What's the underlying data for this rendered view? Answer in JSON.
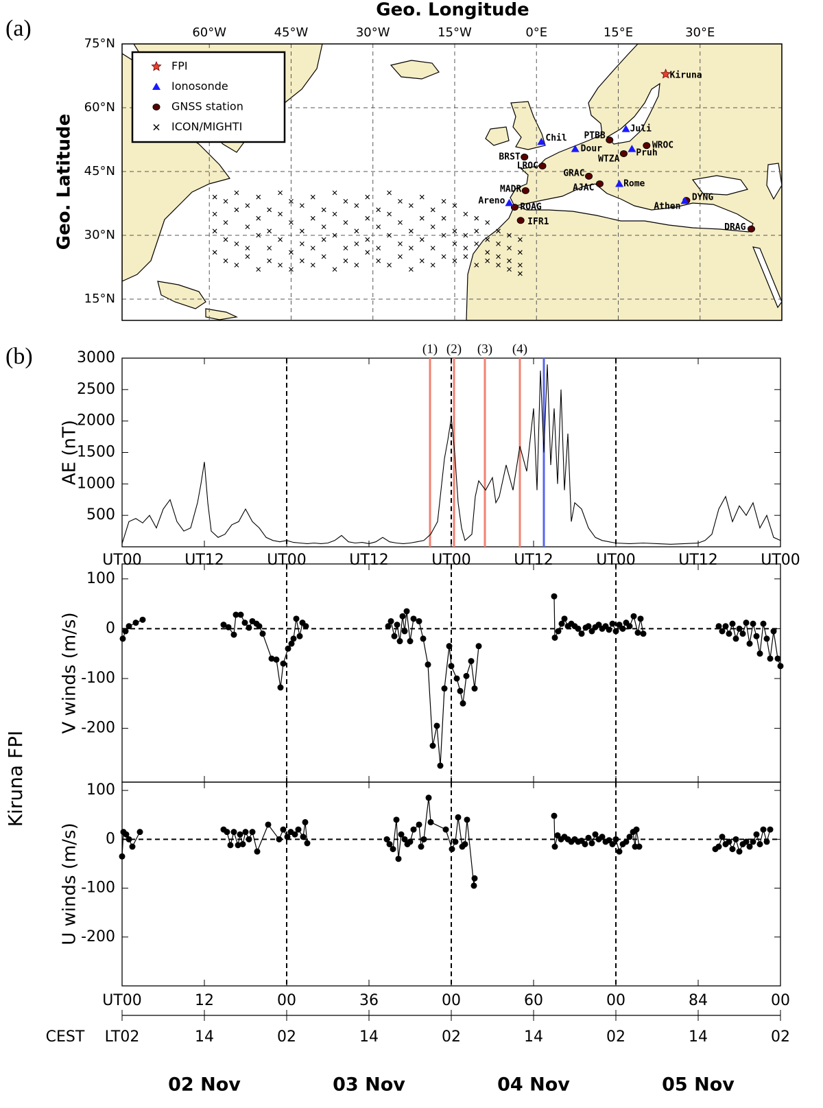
{
  "panel_labels": {
    "a": "(a)",
    "b": "(b)"
  },
  "map": {
    "xlabel": "Geo. Longitude",
    "ylabel": "Geo. Latitude",
    "xlim": [
      -76,
      45
    ],
    "ylim": [
      10,
      75
    ],
    "xticks": [
      {
        "value": -60,
        "label": "60°W"
      },
      {
        "value": -45,
        "label": "45°W"
      },
      {
        "value": -30,
        "label": "30°W"
      },
      {
        "value": -15,
        "label": "15°W"
      },
      {
        "value": 0,
        "label": "0°E"
      },
      {
        "value": 15,
        "label": "15°E"
      },
      {
        "value": 30,
        "label": "30°E"
      }
    ],
    "yticks": [
      {
        "value": 75,
        "label": "75°N"
      },
      {
        "value": 60,
        "label": "60°N"
      },
      {
        "value": 45,
        "label": "45°N"
      },
      {
        "value": 30,
        "label": "30°N"
      },
      {
        "value": 15,
        "label": "15°N"
      }
    ],
    "grid": true,
    "legend": [
      "FPI",
      "Ionosonde",
      "GNSS station",
      "ICON/MIGHTI"
    ],
    "colors": {
      "fpi": "#e8412c",
      "ionosonde": "#1a1aff",
      "gnss": "#000000",
      "mighti": "#000000",
      "land": "#f5edc4"
    },
    "fpi": [
      {
        "name": "Kiruna",
        "lon": 23.7,
        "lat": 67.9
      }
    ],
    "ionosonde": [
      {
        "name": "Chil",
        "lon": 0.9,
        "lat": 52.0
      },
      {
        "name": "Dour",
        "lon": 7.1,
        "lat": 50.3
      },
      {
        "name": "Juli",
        "lon": 16.4,
        "lat": 55.0
      },
      {
        "name": "Pruh",
        "lon": 17.5,
        "lat": 50.3
      },
      {
        "name": "Rome",
        "lon": 15.2,
        "lat": 42.1
      },
      {
        "name": "Areno",
        "lon": -5.0,
        "lat": 37.6
      },
      {
        "name": "Athen",
        "lon": 27.2,
        "lat": 38.1
      }
    ],
    "gnss": [
      {
        "name": "PTBB",
        "lon": 13.4,
        "lat": 52.4
      },
      {
        "name": "WROC",
        "lon": 20.2,
        "lat": 51.1
      },
      {
        "name": "WTZA",
        "lon": 16.0,
        "lat": 49.2
      },
      {
        "name": "BRST",
        "lon": -2.2,
        "lat": 48.4
      },
      {
        "name": "LROC",
        "lon": 1.1,
        "lat": 46.3
      },
      {
        "name": "GRAC",
        "lon": 9.6,
        "lat": 43.9
      },
      {
        "name": "AJAC",
        "lon": 11.6,
        "lat": 42.1
      },
      {
        "name": "MADR",
        "lon": -2.0,
        "lat": 40.5
      },
      {
        "name": "ROAG",
        "lon": -4.0,
        "lat": 36.6
      },
      {
        "name": "IFR1",
        "lon": -2.9,
        "lat": 33.5
      },
      {
        "name": "DYNG",
        "lon": 27.5,
        "lat": 38.2
      },
      {
        "name": "DRAG",
        "lon": 39.4,
        "lat": 31.5
      }
    ],
    "mighti": {
      "lon": [
        -59,
        -59,
        -59,
        -59,
        -57,
        -57,
        -57,
        -57,
        -55,
        -55,
        -55,
        -55,
        -53,
        -53,
        -53,
        -53,
        -51,
        -51,
        -51,
        -51,
        -49,
        -49,
        -49,
        -49,
        -47,
        -47,
        -47,
        -47,
        -45,
        -45,
        -45,
        -45,
        -43,
        -43,
        -43,
        -43,
        -41,
        -41,
        -41,
        -41,
        -39,
        -39,
        -39,
        -39,
        -37,
        -37,
        -37,
        -37,
        -35,
        -35,
        -35,
        -35,
        -33,
        -33,
        -33,
        -33,
        -31,
        -31,
        -31,
        -31,
        -29,
        -29,
        -29,
        -29,
        -27,
        -27,
        -27,
        -27,
        -25,
        -25,
        -25,
        -25,
        -23,
        -23,
        -23,
        -23,
        -21,
        -21,
        -21,
        -21,
        -19,
        -19,
        -19,
        -19,
        -17,
        -17,
        -17,
        -17,
        -15,
        -15,
        -15,
        -15,
        -13,
        -13,
        -13,
        -13,
        -11,
        -11,
        -11,
        -11,
        -9,
        -9,
        -9,
        -9,
        -7,
        -7,
        -7,
        -7,
        -5,
        -5,
        -5,
        -5,
        -3,
        -3,
        -3,
        -3
      ],
      "lat": [
        39,
        35,
        31,
        26,
        38,
        33,
        29,
        24,
        40,
        36,
        28,
        23,
        37,
        32,
        27,
        25,
        39,
        34,
        30,
        22,
        36,
        31,
        27,
        24,
        40,
        35,
        29,
        23,
        38,
        33,
        26,
        22,
        37,
        31,
        28,
        24,
        39,
        34,
        27,
        23,
        36,
        32,
        29,
        25,
        40,
        35,
        30,
        22,
        38,
        33,
        27,
        24,
        37,
        31,
        28,
        23,
        39,
        34,
        29,
        26,
        36,
        32,
        27,
        24,
        40,
        35,
        30,
        23,
        38,
        33,
        28,
        25,
        37,
        31,
        27,
        22,
        39,
        34,
        29,
        24,
        36,
        32,
        27,
        23,
        38,
        34,
        30,
        25,
        37,
        31,
        28,
        24,
        35,
        30,
        27,
        25,
        34,
        31,
        28,
        23,
        33,
        29,
        26,
        24,
        31,
        28,
        25,
        23,
        30,
        27,
        24,
        22,
        29,
        26,
        23,
        21
      ]
    }
  },
  "group_label": "Kiruna FPI",
  "chart_data": [
    {
      "type": "line",
      "ylabel": "AE (nT)",
      "color": "#000000",
      "markers": false,
      "x": [
        0,
        1,
        2,
        3,
        4,
        5,
        6,
        7,
        8,
        9,
        10,
        11,
        11.5,
        12,
        12.5,
        13,
        14,
        15,
        16,
        17,
        18,
        19,
        20,
        21,
        22,
        23,
        24,
        25,
        26,
        27,
        28,
        29,
        30,
        31,
        32,
        33,
        34,
        35,
        36,
        37,
        38,
        39,
        40,
        41,
        42,
        43,
        44,
        45,
        46,
        47,
        47.5,
        48,
        48.5,
        49,
        49.5,
        50,
        51,
        51.5,
        52,
        53,
        54,
        54.5,
        55,
        56,
        57,
        58,
        59,
        60,
        60.5,
        61,
        61.5,
        62,
        62.5,
        63,
        63.5,
        64,
        64.5,
        65,
        65.5,
        66,
        67,
        68,
        69,
        70,
        71,
        72,
        74,
        76,
        78,
        80,
        82,
        84,
        85,
        86,
        87,
        88,
        89,
        90,
        91,
        92,
        93,
        94,
        95,
        96
      ],
      "values": [
        50,
        400,
        450,
        380,
        500,
        300,
        600,
        750,
        400,
        250,
        300,
        700,
        1000,
        1350,
        700,
        250,
        150,
        200,
        350,
        400,
        600,
        400,
        300,
        150,
        100,
        80,
        100,
        70,
        60,
        50,
        60,
        50,
        60,
        100,
        180,
        80,
        60,
        70,
        50,
        80,
        150,
        80,
        60,
        50,
        60,
        80,
        100,
        200,
        400,
        1400,
        1700,
        2050,
        1500,
        700,
        300,
        100,
        200,
        800,
        1050,
        900,
        1100,
        700,
        800,
        1300,
        900,
        1600,
        1200,
        2200,
        900,
        2800,
        1500,
        2900,
        1300,
        2200,
        1000,
        2500,
        900,
        1800,
        400,
        700,
        600,
        300,
        150,
        100,
        80,
        60,
        50,
        60,
        50,
        40,
        50,
        60,
        100,
        200,
        600,
        800,
        400,
        650,
        500,
        700,
        300,
        500,
        150,
        100
      ],
      "xlim": [
        0,
        96
      ],
      "ylim": [
        0,
        3000
      ],
      "yticks": [
        500,
        1000,
        1500,
        2000,
        2500,
        3000
      ],
      "xticks": [
        {
          "value": 0,
          "label": "UT00"
        },
        {
          "value": 12,
          "label": "UT12"
        },
        {
          "value": 24,
          "label": "UT00"
        },
        {
          "value": 36,
          "label": "UT12"
        },
        {
          "value": 48,
          "label": "UT00"
        },
        {
          "value": 60,
          "label": "UT12"
        },
        {
          "value": 72,
          "label": "UT00"
        },
        {
          "value": 84,
          "label": "UT12"
        },
        {
          "value": 96,
          "label": "UT00"
        }
      ],
      "vlines": [
        24,
        48,
        72
      ],
      "events": [
        {
          "value": 44.9,
          "label": "(1)",
          "color": "#f08272"
        },
        {
          "value": 48.4,
          "label": "(2)",
          "color": "#f08272"
        },
        {
          "value": 52.9,
          "label": "(3)",
          "color": "#f08272"
        },
        {
          "value": 58.0,
          "label": "(4)",
          "color": "#f08272"
        },
        {
          "value": 61.5,
          "color": "#5566ee"
        }
      ]
    },
    {
      "type": "line",
      "ylabel": "V winds (m/s)",
      "color": "#000000",
      "markers": true,
      "x": [
        0.1,
        0.5,
        1,
        2,
        3,
        14.8,
        15.5,
        16.3,
        16.6,
        17.3,
        17.9,
        18.5,
        19,
        19.6,
        20,
        20.5,
        21.8,
        22.5,
        23.1,
        23.5,
        24.2,
        24.7,
        25,
        25.4,
        25.9,
        26.3,
        26.8,
        38.8,
        39.2,
        39.7,
        40.1,
        40.5,
        40.9,
        41.2,
        41.5,
        42,
        42.5,
        43.3,
        43.9,
        44.6,
        45.3,
        45.9,
        46.4,
        47,
        47.7,
        48,
        48.8,
        49.3,
        49.7,
        50.2,
        50.9,
        51.4,
        52,
        63,
        63.1,
        63.6,
        64.1,
        64.5,
        65,
        65.5,
        66,
        66.5,
        67,
        67.6,
        68,
        68.5,
        69,
        69.5,
        70,
        70.5,
        71,
        71.5,
        72,
        72.5,
        73,
        73.5,
        74,
        74.6,
        75.2,
        75.6,
        76,
        87,
        87.5,
        88,
        88.5,
        89,
        89.5,
        90,
        90.5,
        91,
        91.5,
        92,
        92.5,
        93,
        93.5,
        94,
        94.5,
        95,
        95.6,
        96
      ],
      "values": [
        -20,
        -5,
        5,
        12,
        18,
        8,
        3,
        -12,
        28,
        28,
        12,
        2,
        15,
        10,
        5,
        -10,
        -60,
        -62,
        -118,
        -70,
        -40,
        -30,
        -20,
        20,
        -15,
        12,
        5,
        5,
        15,
        -15,
        8,
        -25,
        25,
        -5,
        35,
        -25,
        20,
        15,
        -20,
        -72,
        -235,
        -195,
        -275,
        -120,
        -35,
        -75,
        -100,
        -125,
        -150,
        -95,
        -65,
        -120,
        -35,
        65,
        -18,
        -5,
        10,
        20,
        5,
        10,
        5,
        0,
        -10,
        2,
        5,
        -5,
        3,
        8,
        0,
        5,
        -2,
        10,
        -5,
        8,
        0,
        12,
        5,
        25,
        -8,
        20,
        -10,
        5,
        -5,
        5,
        -10,
        10,
        -20,
        0,
        -10,
        12,
        -30,
        10,
        -15,
        -50,
        10,
        -20,
        -60,
        -5,
        -60,
        -75
      ],
      "xlim": [
        0,
        96
      ],
      "ylim": [
        -308,
        130
      ],
      "yticks": [
        -200,
        -100,
        0,
        100
      ],
      "hline": 0,
      "vlines": [
        24,
        48,
        72
      ]
    },
    {
      "type": "line",
      "ylabel": "U winds (m/s)",
      "color": "#000000",
      "markers": true,
      "x": [
        0,
        0.2,
        0.6,
        1,
        1.5,
        2.6,
        14.8,
        15.3,
        15.8,
        16.3,
        16.9,
        17.2,
        17.6,
        18,
        18.5,
        19,
        19.7,
        21.3,
        22.9,
        23.5,
        24.1,
        24.6,
        25.2,
        25.7,
        26.4,
        26.7,
        27,
        38.6,
        39,
        39.5,
        40,
        40.3,
        40.7,
        41.2,
        41.6,
        42,
        42.5,
        43.3,
        43.6,
        44,
        44.7,
        45,
        47.2,
        48.1,
        48.6,
        49,
        49.6,
        50,
        50.3,
        51.3,
        51.4,
        63,
        63.1,
        63.5,
        64,
        64.5,
        65,
        65.5,
        66,
        66.5,
        67,
        67.5,
        68,
        68.5,
        69,
        69.5,
        70,
        70.5,
        71,
        71.5,
        72,
        72.5,
        73,
        73.5,
        74,
        74.5,
        74.8,
        75,
        75.4,
        86.5,
        87,
        87.5,
        88,
        88.5,
        89,
        89.5,
        90,
        90.5,
        91,
        91.5,
        92,
        92.5,
        93,
        93.5,
        94,
        94.5
      ],
      "values": [
        -35,
        15,
        10,
        0,
        -15,
        15,
        20,
        15,
        -12,
        15,
        -12,
        10,
        -10,
        15,
        0,
        15,
        -25,
        30,
        0,
        20,
        5,
        15,
        10,
        20,
        5,
        35,
        -8,
        0,
        -10,
        -20,
        40,
        -40,
        10,
        0,
        -10,
        -5,
        20,
        30,
        -15,
        0,
        85,
        35,
        20,
        -20,
        -5,
        45,
        -15,
        -10,
        40,
        -95,
        -80,
        48,
        -15,
        8,
        0,
        5,
        0,
        -5,
        0,
        -5,
        -3,
        -10,
        3,
        -8,
        10,
        0,
        5,
        -5,
        -2,
        -10,
        0,
        -25,
        -10,
        -5,
        5,
        15,
        -15,
        20,
        -15,
        -20,
        -15,
        5,
        -10,
        -5,
        -20,
        0,
        -25,
        -10,
        -5,
        -15,
        -5,
        10,
        -10,
        20,
        -5,
        20
      ],
      "xlim": [
        0,
        96
      ],
      "ylim": [
        -300,
        117
      ],
      "yticks": [
        -200,
        -100,
        0,
        100
      ],
      "hline": 0,
      "vlines": [
        24,
        48,
        72
      ]
    }
  ],
  "time_axis": {
    "xlim": [
      0,
      96
    ],
    "ut_ticks": [
      {
        "value": 0,
        "label": "UT00"
      },
      12,
      {
        "value": 24,
        "label": "00"
      },
      36,
      {
        "value": 48,
        "label": "00"
      },
      60,
      {
        "value": 72,
        "label": "00"
      },
      84,
      {
        "value": 96,
        "label": "00"
      }
    ],
    "lt_label": "CEST",
    "lt_ticks": [
      {
        "value": 0,
        "label": "LT02"
      },
      {
        "value": 12,
        "label": "14"
      },
      {
        "value": 24,
        "label": "02"
      },
      {
        "value": 36,
        "label": "14"
      },
      {
        "value": 48,
        "label": "02"
      },
      {
        "value": 60,
        "label": "14"
      },
      {
        "value": 72,
        "label": "02"
      },
      {
        "value": 84,
        "label": "14"
      },
      {
        "value": 96,
        "label": "02"
      }
    ],
    "days": [
      {
        "value": 12,
        "label": "02 Nov",
        "color": "#000000"
      },
      {
        "value": 36,
        "label": "03 Nov",
        "color": "#000000"
      },
      {
        "value": 60,
        "label": "04 Nov",
        "color": "#e8412c"
      },
      {
        "value": 84,
        "label": "05 Nov",
        "color": "#000000"
      }
    ]
  }
}
